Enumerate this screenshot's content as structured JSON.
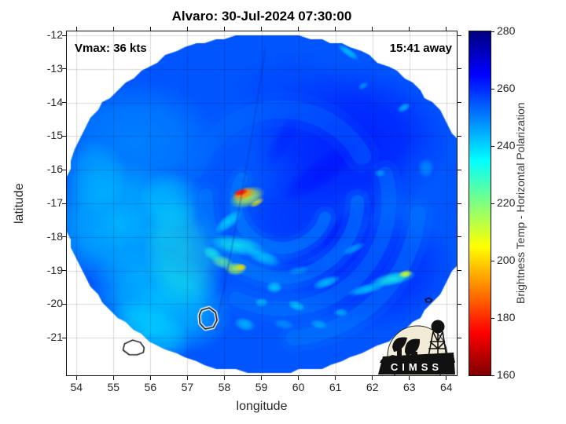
{
  "figure": {
    "title": "Alvaro: 30-Jul-2024 07:30:00",
    "annotation_left": "Vmax: 36 kts",
    "annotation_right": "15:41 away"
  },
  "axes": {
    "xlabel": "longitude",
    "ylabel": "latitude",
    "xlim": [
      53.74,
      64.28
    ],
    "ylim": [
      -22.12,
      -11.88
    ],
    "xticks": [
      54,
      55,
      56,
      57,
      58,
      59,
      60,
      61,
      62,
      63,
      64
    ],
    "yticks": [
      -12,
      -13,
      -14,
      -15,
      -16,
      -17,
      -18,
      -19,
      -20,
      -21
    ]
  },
  "colorbar": {
    "label": "Brightness Temp - Horizontal Polarization",
    "min": 160,
    "max": 280,
    "ticks": [
      160,
      180,
      200,
      220,
      240,
      260,
      280
    ],
    "colormap": "jet-reversed"
  },
  "logo": {
    "text": "CIMSS"
  },
  "chart_data": {
    "type": "heatmap",
    "title": "Alvaro: 30-Jul-2024 07:30:00",
    "storm_name": "Alvaro",
    "timestamp": "30-Jul-2024 07:30:00",
    "vmax_kts": 36,
    "time_offset_label": "15:41 away",
    "xlabel": "longitude",
    "ylabel": "latitude",
    "value_label": "Brightness Temp - Horizontal Polarization",
    "value_range_K": [
      160,
      280
    ],
    "swath": {
      "center_lon": 59.18,
      "center_lat": -17.0,
      "radius_lon_deg": 5.5,
      "radius_lat_deg": 5.05,
      "background_temp_K": 255
    },
    "hot_spot": {
      "lon": 58.45,
      "lat": -16.7,
      "approx_min_temp_K": 176
    },
    "seam_lonlat": [
      [
        59.11,
        -12.35
      ],
      [
        58.54,
        -16.67
      ],
      [
        57.76,
        -20.76
      ]
    ],
    "features": [
      {
        "kind": "blob",
        "lon": 55.6,
        "lat": -15.2,
        "rx": 2.3,
        "ry": 1.9,
        "rot": 0,
        "t": 249,
        "a": 0.85
      },
      {
        "kind": "blob",
        "lon": 55.2,
        "lat": -17.6,
        "rx": 2.1,
        "ry": 1.9,
        "rot": 0,
        "t": 243,
        "a": 0.9
      },
      {
        "kind": "blob",
        "lon": 56.3,
        "lat": -19.9,
        "rx": 2.0,
        "ry": 1.5,
        "rot": 20,
        "t": 241,
        "a": 0.85
      },
      {
        "kind": "blob",
        "lon": 54.5,
        "lat": -16.2,
        "rx": 0.9,
        "ry": 1.1,
        "rot": 0,
        "t": 241,
        "a": 0.5
      },
      {
        "kind": "blob",
        "lon": 56.9,
        "lat": -18.5,
        "rx": 1.1,
        "ry": 1.7,
        "rot": -10,
        "t": 231,
        "a": 0.55
      },
      {
        "kind": "blob",
        "lon": 56.6,
        "lat": -16.9,
        "rx": 0.9,
        "ry": 0.9,
        "rot": 0,
        "t": 238,
        "a": 0.5
      },
      {
        "kind": "blob",
        "lon": 56.0,
        "lat": -20.8,
        "rx": 1.2,
        "ry": 0.8,
        "rot": 30,
        "t": 238,
        "a": 0.6
      },
      {
        "kind": "blob",
        "lon": 61.4,
        "lat": -15.2,
        "rx": 2.7,
        "ry": 2.3,
        "rot": 0,
        "t": 263,
        "a": 0.8
      },
      {
        "kind": "blob",
        "lon": 61.9,
        "lat": -18.9,
        "rx": 2.3,
        "ry": 1.9,
        "rot": 0,
        "t": 262,
        "a": 0.75
      },
      {
        "kind": "blob",
        "lon": 60.1,
        "lat": -17.4,
        "rx": 1.6,
        "ry": 1.6,
        "rot": 0,
        "t": 261,
        "a": 0.6
      },
      {
        "kind": "blob",
        "lon": 59.9,
        "lat": -13.9,
        "rx": 1.7,
        "ry": 1.4,
        "rot": 0,
        "t": 258,
        "a": 0.6
      },
      {
        "kind": "blob",
        "lon": 63.3,
        "lat": -16.8,
        "rx": 0.9,
        "ry": 1.8,
        "rot": 0,
        "t": 254,
        "a": 0.45
      },
      {
        "kind": "blob",
        "lon": 60.6,
        "lat": -16.1,
        "rx": 1.3,
        "ry": 0.45,
        "rot": -35,
        "t": 265,
        "a": 0.45
      },
      {
        "kind": "blob",
        "lon": 61.4,
        "lat": -17.6,
        "rx": 1.1,
        "ry": 0.4,
        "rot": -45,
        "t": 265,
        "a": 0.45
      },
      {
        "kind": "blob",
        "lon": 60.1,
        "lat": -18.95,
        "rx": 1.0,
        "ry": 0.3,
        "rot": -5,
        "t": 264,
        "a": 0.45
      },
      {
        "kind": "blob",
        "lon": 59.6,
        "lat": -15.1,
        "rx": 0.9,
        "ry": 0.3,
        "rot": -60,
        "t": 263,
        "a": 0.35
      },
      {
        "kind": "arc",
        "clon": 59.55,
        "clat": -16.95,
        "r": 1.25,
        "a0": 20,
        "a1": 210,
        "w": 0.32,
        "t": 250,
        "a": 0.55
      },
      {
        "kind": "arc",
        "clon": 59.55,
        "clat": -16.95,
        "r": 2.05,
        "a0": 0,
        "a1": 185,
        "w": 0.36,
        "t": 250,
        "a": 0.5
      },
      {
        "kind": "arc",
        "clon": 59.55,
        "clat": -16.95,
        "r": 2.9,
        "a0": -15,
        "a1": 115,
        "w": 0.4,
        "t": 251,
        "a": 0.45
      },
      {
        "kind": "arc",
        "clon": 59.55,
        "clat": -16.95,
        "r": 3.7,
        "a0": 5,
        "a1": 85,
        "w": 0.42,
        "t": 250,
        "a": 0.4
      },
      {
        "kind": "arc",
        "clon": 59.55,
        "clat": -16.95,
        "r": 2.5,
        "a0": 200,
        "a1": 330,
        "w": 0.5,
        "t": 252,
        "a": 0.35
      },
      {
        "kind": "blob",
        "lon": 58.35,
        "lat": -18.25,
        "rx": 0.75,
        "ry": 0.3,
        "rot": 10,
        "t": 233,
        "a": 0.75
      },
      {
        "kind": "blob",
        "lon": 59.05,
        "lat": -18.6,
        "rx": 0.5,
        "ry": 0.22,
        "rot": 20,
        "t": 238,
        "a": 0.7
      },
      {
        "kind": "blob",
        "lon": 58.1,
        "lat": -17.55,
        "rx": 0.45,
        "ry": 0.2,
        "rot": -40,
        "t": 236,
        "a": 0.7
      },
      {
        "kind": "blob",
        "lon": 62.55,
        "lat": -19.25,
        "rx": 0.65,
        "ry": 0.2,
        "rot": -12,
        "t": 232,
        "a": 0.8
      },
      {
        "kind": "blob",
        "lon": 62.9,
        "lat": -19.1,
        "rx": 0.2,
        "ry": 0.12,
        "rot": -12,
        "t": 208,
        "a": 0.9
      },
      {
        "kind": "blob",
        "lon": 61.85,
        "lat": -19.55,
        "rx": 0.55,
        "ry": 0.16,
        "rot": -15,
        "t": 238,
        "a": 0.75
      },
      {
        "kind": "blob",
        "lon": 60.75,
        "lat": -19.35,
        "rx": 0.4,
        "ry": 0.16,
        "rot": -20,
        "t": 237,
        "a": 0.7
      },
      {
        "kind": "blob",
        "lon": 61.5,
        "lat": -18.35,
        "rx": 0.35,
        "ry": 0.13,
        "rot": -25,
        "t": 241,
        "a": 0.6
      },
      {
        "kind": "blob",
        "lon": 59.35,
        "lat": -19.5,
        "rx": 0.22,
        "ry": 0.18,
        "rot": 0,
        "t": 238,
        "a": 0.75
      },
      {
        "kind": "blob",
        "lon": 59.95,
        "lat": -20.05,
        "rx": 0.25,
        "ry": 0.15,
        "rot": 20,
        "t": 238,
        "a": 0.7
      },
      {
        "kind": "blob",
        "lon": 59.0,
        "lat": -19.95,
        "rx": 0.18,
        "ry": 0.14,
        "rot": 0,
        "t": 240,
        "a": 0.7
      },
      {
        "kind": "blob",
        "lon": 58.55,
        "lat": -20.6,
        "rx": 0.3,
        "ry": 0.2,
        "rot": 15,
        "t": 240,
        "a": 0.7
      },
      {
        "kind": "blob",
        "lon": 60.55,
        "lat": -20.6,
        "rx": 0.25,
        "ry": 0.14,
        "rot": 10,
        "t": 241,
        "a": 0.6
      },
      {
        "kind": "blob",
        "lon": 61.15,
        "lat": -20.25,
        "rx": 0.2,
        "ry": 0.13,
        "rot": 0,
        "t": 240,
        "a": 0.65
      },
      {
        "kind": "blob",
        "lon": 62.2,
        "lat": -16.1,
        "rx": 0.16,
        "ry": 0.12,
        "rot": 0,
        "t": 243,
        "a": 0.6
      },
      {
        "kind": "blob",
        "lon": 62.85,
        "lat": -14.15,
        "rx": 0.2,
        "ry": 0.12,
        "rot": -30,
        "t": 240,
        "a": 0.7
      },
      {
        "kind": "blob",
        "lon": 61.75,
        "lat": -13.5,
        "rx": 0.16,
        "ry": 0.1,
        "rot": -30,
        "t": 243,
        "a": 0.6
      },
      {
        "kind": "blob",
        "lon": 63.45,
        "lat": -15.95,
        "rx": 0.22,
        "ry": 0.3,
        "rot": 0,
        "t": 244,
        "a": 0.55
      },
      {
        "kind": "blob",
        "lon": 61.35,
        "lat": -12.5,
        "rx": 0.35,
        "ry": 0.12,
        "rot": 35,
        "t": 240,
        "a": 0.8
      },
      {
        "kind": "blob",
        "lon": 60.0,
        "lat": -19.0,
        "rx": 0.3,
        "ry": 0.14,
        "rot": -10,
        "t": 244,
        "a": 0.5
      },
      {
        "kind": "blob",
        "lon": 59.6,
        "lat": -20.6,
        "rx": 0.3,
        "ry": 0.15,
        "rot": 10,
        "t": 243,
        "a": 0.5
      },
      {
        "kind": "blob",
        "lon": 58.3,
        "lat": -18.95,
        "rx": 0.3,
        "ry": 0.2,
        "rot": 0,
        "t": 214,
        "a": 0.85
      },
      {
        "kind": "blob",
        "lon": 58.45,
        "lat": -18.9,
        "rx": 0.16,
        "ry": 0.11,
        "rot": 0,
        "t": 200,
        "a": 0.9
      },
      {
        "kind": "blob",
        "lon": 57.95,
        "lat": -18.75,
        "rx": 0.32,
        "ry": 0.2,
        "rot": 15,
        "t": 222,
        "a": 0.75
      },
      {
        "kind": "blob",
        "lon": 57.68,
        "lat": -18.5,
        "rx": 0.28,
        "ry": 0.2,
        "rot": 30,
        "t": 232,
        "a": 0.7
      },
      {
        "kind": "blob",
        "lon": 58.62,
        "lat": -16.82,
        "rx": 0.5,
        "ry": 0.3,
        "rot": -20,
        "t": 212,
        "a": 0.85
      },
      {
        "kind": "blob",
        "lon": 58.88,
        "lat": -16.98,
        "rx": 0.22,
        "ry": 0.1,
        "rot": -30,
        "t": 204,
        "a": 0.75
      },
      {
        "kind": "blob",
        "lon": 58.52,
        "lat": -16.72,
        "rx": 0.34,
        "ry": 0.18,
        "rot": -20,
        "t": 191,
        "a": 0.95
      },
      {
        "kind": "blob",
        "lon": 58.44,
        "lat": -16.67,
        "rx": 0.21,
        "ry": 0.1,
        "rot": -15,
        "t": 176,
        "a": 1
      }
    ],
    "coastlines": [
      {
        "style": "white-black",
        "points_lonlat": [
          [
            57.38,
            -20.18
          ],
          [
            57.59,
            -20.11
          ],
          [
            57.76,
            -20.25
          ],
          [
            57.8,
            -20.48
          ],
          [
            57.7,
            -20.69
          ],
          [
            57.48,
            -20.74
          ],
          [
            57.34,
            -20.58
          ],
          [
            57.32,
            -20.34
          ]
        ]
      },
      {
        "style": "black",
        "points_lonlat": [
          [
            55.3,
            -21.18
          ],
          [
            55.52,
            -21.07
          ],
          [
            55.73,
            -21.14
          ],
          [
            55.83,
            -21.3
          ],
          [
            55.81,
            -21.44
          ],
          [
            55.64,
            -21.51
          ],
          [
            55.43,
            -21.51
          ],
          [
            55.26,
            -21.37
          ]
        ]
      },
      {
        "style": "black",
        "points_lonlat": [
          [
            63.43,
            -19.86
          ],
          [
            63.52,
            -19.82
          ],
          [
            63.61,
            -19.86
          ],
          [
            63.58,
            -19.93
          ],
          [
            63.46,
            -19.94
          ]
        ]
      }
    ]
  }
}
